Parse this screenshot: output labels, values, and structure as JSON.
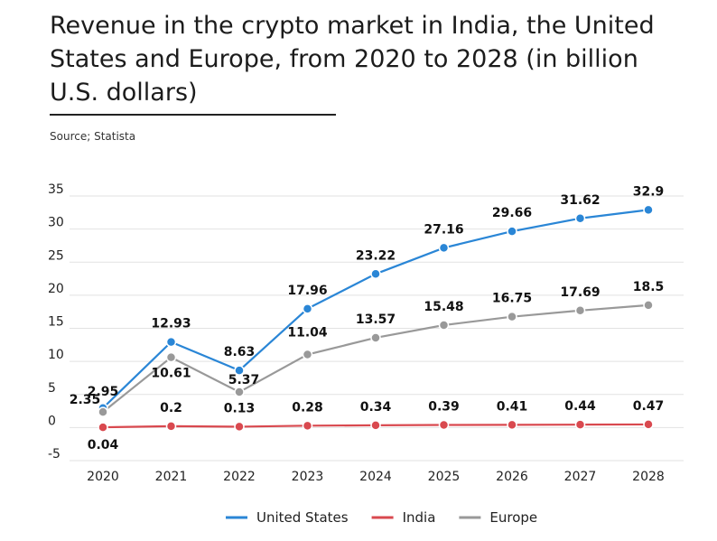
{
  "title": "Revenue in the crypto market in India, the United States and Europe, from 2020 to 2028 (in billion U.S. dollars)",
  "source": "Source; Statista",
  "chart_data": {
    "type": "line",
    "x": [
      "2020",
      "2021",
      "2022",
      "2023",
      "2024",
      "2025",
      "2026",
      "2027",
      "2028"
    ],
    "ylim": [
      -5,
      35
    ],
    "yticks": [
      -5,
      0,
      5,
      10,
      15,
      20,
      25,
      30,
      35
    ],
    "grid": true,
    "legend_position": "bottom",
    "series": [
      {
        "name": "United States",
        "color": "#2a86d6",
        "values": [
          2.95,
          12.93,
          8.63,
          17.96,
          23.22,
          27.16,
          29.66,
          31.62,
          32.9
        ],
        "labels": [
          "2.95",
          "12.93",
          "8.63",
          "17.96",
          "23.22",
          "27.16",
          "29.66",
          "31.62",
          "32.9"
        ]
      },
      {
        "name": "India",
        "color": "#d9494f",
        "values": [
          0.04,
          0.2,
          0.13,
          0.28,
          0.34,
          0.39,
          0.41,
          0.44,
          0.47
        ],
        "labels": [
          "0.04",
          "0.2",
          "0.13",
          "0.28",
          "0.34",
          "0.39",
          "0.41",
          "0.44",
          "0.47"
        ]
      },
      {
        "name": "Europe",
        "color": "#999999",
        "values": [
          2.35,
          10.61,
          5.37,
          11.04,
          13.57,
          15.48,
          16.75,
          17.69,
          18.5
        ],
        "labels": [
          "2.35",
          "10.61",
          "5.37",
          "11.04",
          "13.57",
          "15.48",
          "16.75",
          "17.69",
          "18.5"
        ]
      }
    ]
  }
}
